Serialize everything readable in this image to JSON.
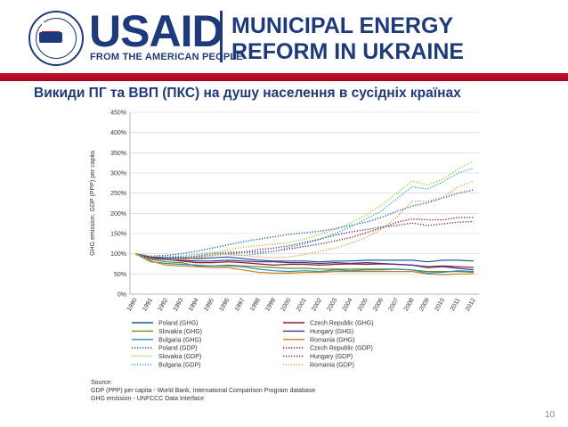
{
  "header": {
    "logo_text": "USAID",
    "logo_subtitle": "FROM THE AMERICAN PEOPLE",
    "seal_text": "USAID",
    "project_line1": "MUNICIPAL ENERGY",
    "project_line2": "REFORM IN UKRAINE",
    "brand_blue": "#1f3a7a",
    "brand_red": "#c8102e"
  },
  "slide": {
    "title": "Викиди ПГ та ВВП (ПКС) на душу населення в сусідніх країнах",
    "page_number": "10"
  },
  "chart_data": {
    "type": "line",
    "ylabel": "GHG emission, GDP (PPP) per capita",
    "ylim": [
      0,
      450
    ],
    "yticks": [
      "0%",
      "50%",
      "100%",
      "150%",
      "200%",
      "250%",
      "300%",
      "350%",
      "400%",
      "450%"
    ],
    "x": [
      "1990",
      "1991",
      "1992",
      "1993",
      "1994",
      "1995",
      "1996",
      "1997",
      "1998",
      "1999",
      "2000",
      "2001",
      "2002",
      "2003",
      "2004",
      "2005",
      "2006",
      "2007",
      "2008",
      "2009",
      "2010",
      "2011",
      "2012"
    ],
    "series": [
      {
        "name": "Poland (GHG)",
        "style": "solid",
        "color": "#1f5a96",
        "values": [
          100,
          92,
          90,
          90,
          88,
          90,
          92,
          88,
          84,
          82,
          82,
          82,
          80,
          82,
          82,
          84,
          84,
          84,
          84,
          80,
          84,
          84,
          82
        ]
      },
      {
        "name": "Czech Republic (GHG)",
        "style": "solid",
        "color": "#8b1a2e",
        "values": [
          100,
          92,
          86,
          82,
          78,
          78,
          80,
          78,
          75,
          72,
          74,
          74,
          72,
          74,
          75,
          74,
          75,
          74,
          72,
          68,
          70,
          68,
          66
        ]
      },
      {
        "name": "Slovakia (GHG)",
        "style": "solid",
        "color": "#6b8e23",
        "values": [
          100,
          86,
          80,
          78,
          70,
          70,
          72,
          70,
          68,
          66,
          64,
          64,
          62,
          62,
          62,
          62,
          62,
          62,
          60,
          56,
          56,
          56,
          54
        ]
      },
      {
        "name": "Hungary (GHG)",
        "style": "solid",
        "color": "#4b2e83",
        "values": [
          100,
          88,
          86,
          84,
          82,
          82,
          84,
          82,
          80,
          80,
          78,
          78,
          76,
          78,
          76,
          78,
          76,
          74,
          72,
          66,
          68,
          64,
          60
        ]
      },
      {
        "name": "Bulgaria (GHG)",
        "style": "solid",
        "color": "#2a8db8",
        "values": [
          100,
          80,
          76,
          74,
          72,
          70,
          70,
          68,
          62,
          58,
          56,
          58,
          56,
          60,
          58,
          60,
          60,
          62,
          60,
          52,
          54,
          58,
          56
        ]
      },
      {
        "name": "Romania (GHG)",
        "style": "solid",
        "color": "#c8821e",
        "values": [
          100,
          82,
          72,
          70,
          68,
          66,
          66,
          60,
          54,
          52,
          52,
          54,
          54,
          56,
          56,
          56,
          56,
          56,
          56,
          50,
          48,
          50,
          50
        ]
      },
      {
        "name": "Poland (GDP)",
        "style": "dotted",
        "color": "#1f5a96",
        "values": [
          100,
          94,
          96,
          100,
          106,
          114,
          122,
          130,
          136,
          142,
          148,
          152,
          156,
          162,
          170,
          178,
          190,
          205,
          218,
          226,
          238,
          250,
          258
        ]
      },
      {
        "name": "Czech Republic (GDP)",
        "style": "dotted",
        "color": "#8b1a2e",
        "values": [
          100,
          90,
          88,
          90,
          94,
          100,
          104,
          104,
          104,
          106,
          112,
          118,
          124,
          132,
          140,
          152,
          164,
          178,
          186,
          184,
          184,
          190,
          190
        ]
      },
      {
        "name": "Slovakia (GDP)",
        "style": "dotted",
        "color": "#9acd32",
        "values": [
          100,
          88,
          86,
          86,
          92,
          100,
          110,
          116,
          120,
          124,
          128,
          136,
          148,
          160,
          176,
          196,
          220,
          250,
          280,
          270,
          285,
          310,
          330
        ]
      },
      {
        "name": "Hungary (GDP)",
        "style": "dotted",
        "color": "#4b2e83",
        "values": [
          100,
          90,
          88,
          88,
          92,
          96,
          100,
          104,
          110,
          114,
          120,
          128,
          136,
          146,
          154,
          160,
          166,
          170,
          176,
          170,
          174,
          178,
          180
        ]
      },
      {
        "name": "Bulgaria (GDP)",
        "style": "dotted",
        "color": "#2aa8c8",
        "values": [
          100,
          94,
          92,
          94,
          98,
          104,
          98,
          96,
          100,
          106,
          116,
          124,
          136,
          150,
          166,
          186,
          206,
          236,
          266,
          260,
          278,
          300,
          312
        ]
      },
      {
        "name": "Romania (GDP)",
        "style": "dotted",
        "color": "#d9a040",
        "values": [
          100,
          88,
          84,
          86,
          90,
          96,
          100,
          96,
          92,
          90,
          92,
          98,
          106,
          114,
          126,
          140,
          160,
          190,
          230,
          230,
          240,
          266,
          280
        ]
      }
    ],
    "legend": [
      "Poland (GHG)",
      "Czech Republic (GHG)",
      "Slovakia (GHG)",
      "Hungary (GHG)",
      "Bulgaria (GHG)",
      "Romania (GHG)",
      "Poland (GDP)",
      "Czech Republic (GDP)",
      "Slovakia (GDP)",
      "Hungary (GDP)",
      "Bulgaria (GDP)",
      "Romania (GDP)"
    ],
    "source_lines": [
      "Source:",
      "GDP (PPP) per capita - World Bank, International Comparison Program database",
      "GHG emission - UNFCCC Data Interface"
    ]
  }
}
